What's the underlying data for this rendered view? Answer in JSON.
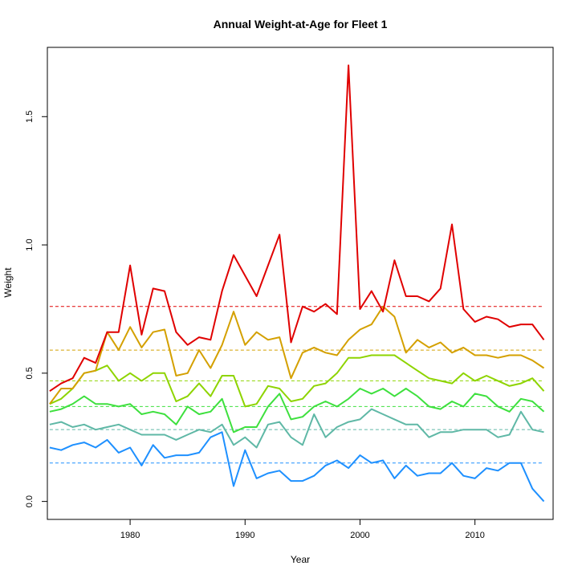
{
  "chart_data": {
    "type": "line",
    "title": "Annual Weight-at-Age for Fleet 1",
    "xlabel": "Year",
    "ylabel": "Weight",
    "xlim": [
      1972.8,
      2016.8
    ],
    "ylim": [
      -0.07,
      1.77
    ],
    "x_ticks": [
      1980,
      1990,
      2000,
      2010
    ],
    "y_ticks": [
      0.0,
      0.5,
      1.0,
      1.5
    ],
    "x_tick_labels": [
      "1980",
      "1990",
      "2000",
      "2010"
    ],
    "y_tick_labels": [
      "0.0",
      "0.5",
      "1.0",
      "1.5"
    ],
    "grid": false,
    "legend": "none",
    "x": [
      1973,
      1974,
      1975,
      1976,
      1977,
      1978,
      1979,
      1980,
      1981,
      1982,
      1983,
      1984,
      1985,
      1986,
      1987,
      1988,
      1989,
      1990,
      1991,
      1992,
      1993,
      1994,
      1995,
      1996,
      1997,
      1998,
      1999,
      2000,
      2001,
      2002,
      2003,
      2004,
      2005,
      2006,
      2007,
      2008,
      2009,
      2010,
      2011,
      2012,
      2013,
      2014,
      2015,
      2016
    ],
    "series": [
      {
        "color": "#1e90ff",
        "mean": 0.15,
        "values": [
          0.21,
          0.2,
          0.22,
          0.23,
          0.21,
          0.24,
          0.19,
          0.21,
          0.14,
          0.22,
          0.17,
          0.18,
          0.18,
          0.19,
          0.25,
          0.27,
          0.06,
          0.2,
          0.09,
          0.11,
          0.12,
          0.08,
          0.08,
          0.1,
          0.14,
          0.16,
          0.13,
          0.18,
          0.15,
          0.16,
          0.09,
          0.14,
          0.1,
          0.11,
          0.11,
          0.15,
          0.1,
          0.09,
          0.13,
          0.12,
          0.15,
          0.15,
          0.05,
          0.0
        ]
      },
      {
        "color": "#5fb8a6",
        "mean": 0.28,
        "values": [
          0.3,
          0.31,
          0.29,
          0.3,
          0.28,
          0.29,
          0.3,
          0.28,
          0.26,
          0.26,
          0.26,
          0.24,
          0.26,
          0.28,
          0.27,
          0.3,
          0.22,
          0.25,
          0.21,
          0.3,
          0.31,
          0.25,
          0.22,
          0.34,
          0.25,
          0.29,
          0.31,
          0.32,
          0.36,
          0.34,
          0.32,
          0.3,
          0.3,
          0.25,
          0.27,
          0.27,
          0.28,
          0.28,
          0.28,
          0.25,
          0.26,
          0.35,
          0.28,
          0.27
        ]
      },
      {
        "color": "#3ee03e",
        "mean": 0.37,
        "values": [
          0.35,
          0.36,
          0.38,
          0.41,
          0.38,
          0.38,
          0.37,
          0.38,
          0.34,
          0.35,
          0.34,
          0.3,
          0.37,
          0.34,
          0.35,
          0.4,
          0.27,
          0.29,
          0.29,
          0.37,
          0.42,
          0.32,
          0.33,
          0.37,
          0.39,
          0.37,
          0.4,
          0.44,
          0.42,
          0.44,
          0.41,
          0.44,
          0.41,
          0.37,
          0.36,
          0.39,
          0.37,
          0.42,
          0.41,
          0.37,
          0.35,
          0.4,
          0.39,
          0.35
        ]
      },
      {
        "color": "#8ed400",
        "mean": 0.47,
        "values": [
          0.38,
          0.4,
          0.44,
          0.5,
          0.51,
          0.53,
          0.47,
          0.5,
          0.47,
          0.5,
          0.5,
          0.39,
          0.41,
          0.46,
          0.41,
          0.49,
          0.49,
          0.37,
          0.38,
          0.45,
          0.44,
          0.39,
          0.4,
          0.45,
          0.46,
          0.5,
          0.56,
          0.56,
          0.57,
          0.57,
          0.57,
          0.54,
          0.51,
          0.48,
          0.47,
          0.46,
          0.5,
          0.47,
          0.49,
          0.47,
          0.45,
          0.46,
          0.48,
          0.43
        ]
      },
      {
        "color": "#d4a000",
        "mean": 0.59,
        "values": [
          0.38,
          0.44,
          0.44,
          0.5,
          0.51,
          0.66,
          0.59,
          0.68,
          0.6,
          0.66,
          0.67,
          0.49,
          0.5,
          0.59,
          0.52,
          0.61,
          0.74,
          0.61,
          0.66,
          0.63,
          0.64,
          0.48,
          0.58,
          0.6,
          0.58,
          0.57,
          0.63,
          0.67,
          0.69,
          0.76,
          0.72,
          0.58,
          0.63,
          0.6,
          0.62,
          0.58,
          0.6,
          0.57,
          0.57,
          0.56,
          0.57,
          0.57,
          0.55,
          0.52
        ]
      },
      {
        "color": "#e00000",
        "mean": 0.76,
        "values": [
          0.43,
          0.46,
          0.48,
          0.56,
          0.54,
          0.66,
          0.66,
          0.92,
          0.65,
          0.83,
          0.82,
          0.66,
          0.61,
          0.64,
          0.63,
          0.82,
          0.96,
          0.88,
          0.8,
          0.92,
          1.04,
          0.62,
          0.76,
          0.74,
          0.77,
          0.73,
          1.7,
          0.75,
          0.82,
          0.74,
          0.94,
          0.8,
          0.8,
          0.78,
          0.83,
          1.08,
          0.75,
          0.7,
          0.72,
          0.71,
          0.68,
          0.69,
          0.69,
          0.63
        ]
      }
    ]
  }
}
